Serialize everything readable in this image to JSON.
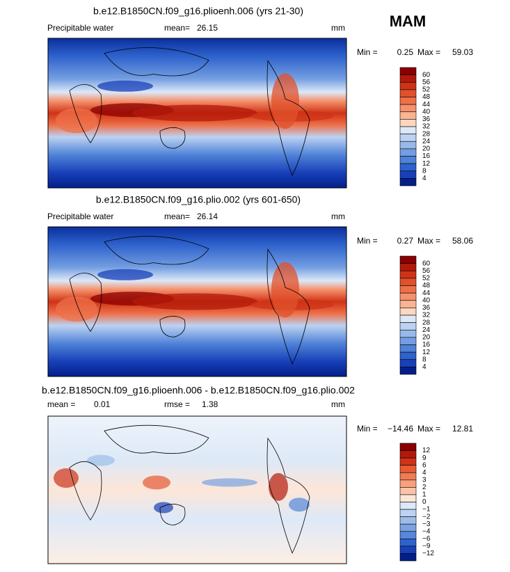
{
  "header": {
    "season": "MAM"
  },
  "panels": [
    {
      "title": "b.e12.B1850CN.f09_g16.plioenh.006 (yrs 21-30)",
      "field_label": "Precipitable water",
      "mean_label": "mean=",
      "mean": 26.15,
      "units": "mm",
      "min_label": "Min =",
      "min": 0.25,
      "max_label": "Max =",
      "max": 59.03,
      "colorbar": {
        "labels": [
          60,
          56,
          52,
          48,
          44,
          40,
          36,
          32,
          28,
          24,
          20,
          16,
          12,
          8,
          4
        ],
        "colors": [
          "#8b0000",
          "#b3190a",
          "#cf3317",
          "#e0512c",
          "#ee7049",
          "#f5916c",
          "#fab393",
          "#fdd7c0",
          "#dce8f8",
          "#bcd2f2",
          "#98b9ea",
          "#739ee1",
          "#4f82d8",
          "#2e62cc",
          "#1840b8",
          "#031f8a"
        ]
      }
    },
    {
      "title": "b.e12.B1850CN.f09_g16.plio.002 (yrs 601-650)",
      "field_label": "Precipitable water",
      "mean_label": "mean=",
      "mean": 26.14,
      "units": "mm",
      "min_label": "Min =",
      "min": 0.27,
      "max_label": "Max =",
      "max": 58.06,
      "colorbar": {
        "labels": [
          60,
          56,
          52,
          48,
          44,
          40,
          36,
          32,
          28,
          24,
          20,
          16,
          12,
          8,
          4
        ],
        "colors": [
          "#8b0000",
          "#b3190a",
          "#cf3317",
          "#e0512c",
          "#ee7049",
          "#f5916c",
          "#fab393",
          "#fdd7c0",
          "#dce8f8",
          "#bcd2f2",
          "#98b9ea",
          "#739ee1",
          "#4f82d8",
          "#2e62cc",
          "#1840b8",
          "#031f8a"
        ]
      }
    },
    {
      "title": "b.e12.B1850CN.f09_g16.plioenh.006 - b.e12.B1850CN.f09_g16.plio.002",
      "mean_label": "mean =",
      "mean": 0.01,
      "rmse_label": "rmse =",
      "rmse": 1.38,
      "units": "mm",
      "min_label": "Min =",
      "min": "−14.46",
      "max_label": "Max =",
      "max": 12.81,
      "colorbar": {
        "labels": [
          "12",
          "9",
          "6",
          "4",
          "3",
          "2",
          "1",
          "0",
          "−1",
          "−2",
          "−3",
          "−4",
          "−6",
          "−9",
          "−12"
        ],
        "colors": [
          "#8b0000",
          "#b3190a",
          "#cf3317",
          "#e65a34",
          "#f07c56",
          "#f7a07e",
          "#fcc3a8",
          "#fde6d8",
          "#dde9f8",
          "#bed3f2",
          "#9dbde8",
          "#7aa3e0",
          "#5687d8",
          "#2e62cc",
          "#1840b8",
          "#031f8a"
        ]
      }
    }
  ]
}
